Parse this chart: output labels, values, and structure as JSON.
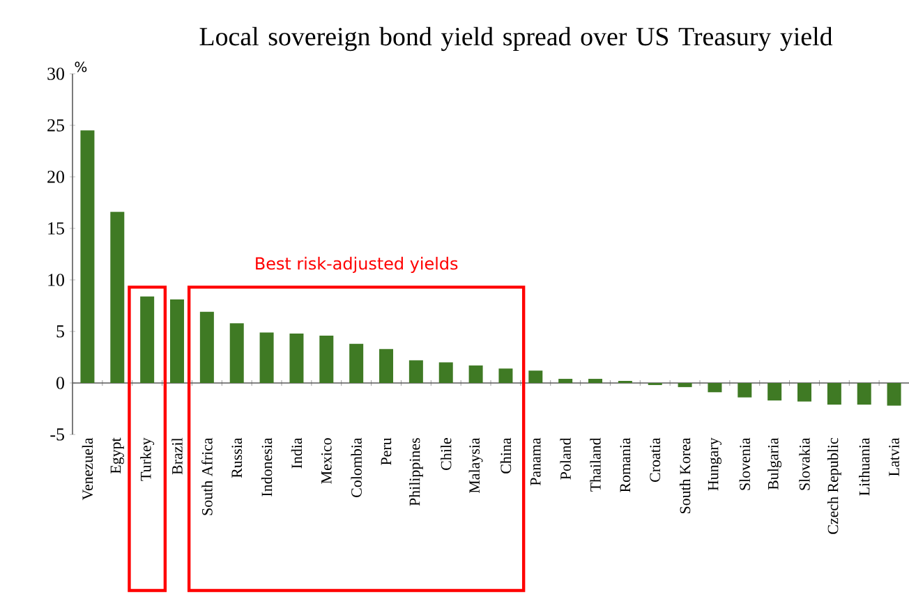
{
  "chart_data": {
    "type": "bar",
    "title": "Local sovereign bond yield spread over US Treasury yield",
    "ylabel": "%",
    "categories": [
      "Venezuela",
      "Egypt",
      "Turkey",
      "Brazil",
      "South Africa",
      "Russia",
      "Indonesia",
      "India",
      "Mexico",
      "Colombia",
      "Peru",
      "Philippines",
      "Chile",
      "Malaysia",
      "China",
      "Panama",
      "Poland",
      "Thailand",
      "Romania",
      "Croatia",
      "South Korea",
      "Hungary",
      "Slovenia",
      "Bulgaria",
      "Slovakia",
      "Czech Republic",
      "Lithuania",
      "Latvia"
    ],
    "values": [
      24.5,
      16.6,
      8.4,
      8.1,
      6.9,
      5.8,
      4.9,
      4.8,
      4.6,
      3.8,
      3.3,
      2.2,
      2.0,
      1.7,
      1.4,
      1.2,
      0.4,
      0.4,
      0.2,
      -0.2,
      -0.4,
      -0.9,
      -1.4,
      -1.7,
      -1.8,
      -2.1,
      -2.1,
      -2.2
    ],
    "color": "#3f7a24",
    "ylim": [
      -5,
      30
    ],
    "yticks": [
      -5,
      0,
      5,
      10,
      15,
      20,
      25,
      30
    ],
    "annotations": [
      "Best risk-adjusted yields"
    ]
  }
}
